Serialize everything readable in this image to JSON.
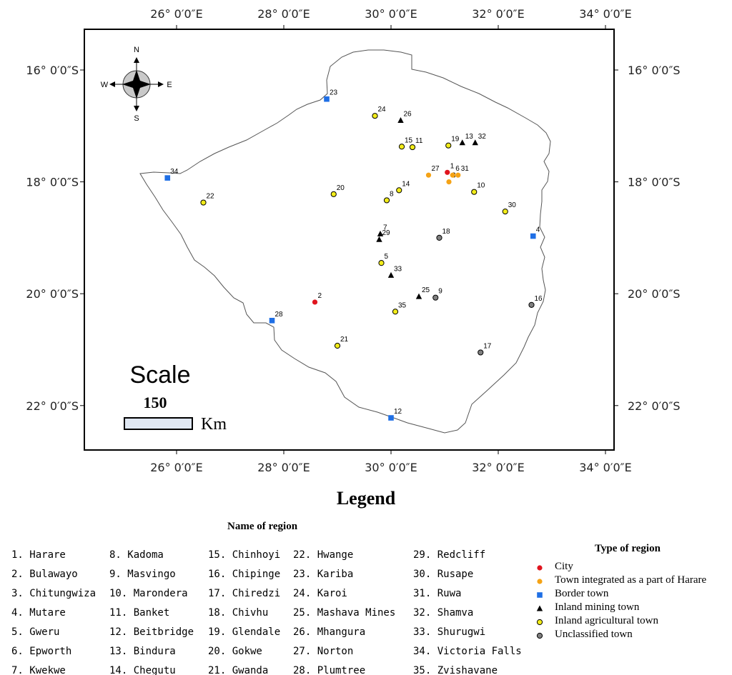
{
  "coordinates": {
    "top_labels": [
      "26° 0′0″E",
      "28° 0′0″E",
      "30° 0′0″E",
      "32° 0′0″E",
      "34° 0′0″E"
    ],
    "bottom_labels": [
      "26° 0′0″E",
      "28° 0′0″E",
      "30° 0′0″E",
      "32° 0′0″E",
      "34° 0′0″E"
    ],
    "left_labels": [
      "16° 0′0″S",
      "18° 0′0″S",
      "20° 0′0″S",
      "22° 0′0″S"
    ],
    "right_labels": [
      "16° 0′0″S",
      "18° 0′0″S",
      "20° 0′0″S",
      "22° 0′0″S"
    ]
  },
  "compass": {
    "north": "N",
    "south": "S",
    "east": "E",
    "west": "W"
  },
  "scale": {
    "title": "Scale",
    "value": "150",
    "unit": "Km"
  },
  "colors": {
    "city": "#e0141e",
    "town_harare": "#f5a316",
    "border": "#1f6fe5",
    "mining": "#000000",
    "agricultural": "#f2ec1a",
    "unclassified": "#7f7f7f"
  },
  "towns": [
    {
      "id": "1",
      "lon": 31.05,
      "lat": -17.83,
      "type": "city"
    },
    {
      "id": "2",
      "lon": 28.58,
      "lat": -20.15,
      "type": "city"
    },
    {
      "id": "3",
      "lon": 31.08,
      "lat": -18.0,
      "type": "town_harare"
    },
    {
      "id": "4",
      "lon": 32.65,
      "lat": -18.97,
      "type": "border"
    },
    {
      "id": "5",
      "lon": 29.82,
      "lat": -19.45,
      "type": "agricultural"
    },
    {
      "id": "6",
      "lon": 31.15,
      "lat": -17.88,
      "type": "town_harare"
    },
    {
      "id": "7",
      "lon": 29.8,
      "lat": -18.93,
      "type": "mining"
    },
    {
      "id": "8",
      "lon": 29.92,
      "lat": -18.33,
      "type": "agricultural"
    },
    {
      "id": "9",
      "lon": 30.83,
      "lat": -20.07,
      "type": "unclassified"
    },
    {
      "id": "10",
      "lon": 31.55,
      "lat": -18.18,
      "type": "agricultural"
    },
    {
      "id": "11",
      "lon": 30.4,
      "lat": -17.38,
      "type": "agricultural"
    },
    {
      "id": "12",
      "lon": 30.0,
      "lat": -22.22,
      "type": "border"
    },
    {
      "id": "13",
      "lon": 31.33,
      "lat": -17.3,
      "type": "mining"
    },
    {
      "id": "14",
      "lon": 30.15,
      "lat": -18.15,
      "type": "agricultural"
    },
    {
      "id": "15",
      "lon": 30.2,
      "lat": -17.37,
      "type": "agricultural"
    },
    {
      "id": "16",
      "lon": 32.62,
      "lat": -20.2,
      "type": "unclassified"
    },
    {
      "id": "17",
      "lon": 31.67,
      "lat": -21.05,
      "type": "unclassified"
    },
    {
      "id": "18",
      "lon": 30.9,
      "lat": -19.0,
      "type": "unclassified"
    },
    {
      "id": "19",
      "lon": 31.07,
      "lat": -17.35,
      "type": "agricultural"
    },
    {
      "id": "20",
      "lon": 28.93,
      "lat": -18.22,
      "type": "agricultural"
    },
    {
      "id": "21",
      "lon": 29.0,
      "lat": -20.93,
      "type": "agricultural"
    },
    {
      "id": "22",
      "lon": 26.5,
      "lat": -18.37,
      "type": "agricultural"
    },
    {
      "id": "23",
      "lon": 28.8,
      "lat": -16.52,
      "type": "border"
    },
    {
      "id": "24",
      "lon": 29.7,
      "lat": -16.82,
      "type": "agricultural"
    },
    {
      "id": "25",
      "lon": 30.52,
      "lat": -20.05,
      "type": "mining"
    },
    {
      "id": "26",
      "lon": 30.18,
      "lat": -16.9,
      "type": "mining"
    },
    {
      "id": "27",
      "lon": 30.7,
      "lat": -17.88,
      "type": "town_harare"
    },
    {
      "id": "28",
      "lon": 27.78,
      "lat": -20.48,
      "type": "border"
    },
    {
      "id": "29",
      "lon": 29.78,
      "lat": -19.03,
      "type": "mining"
    },
    {
      "id": "30",
      "lon": 32.13,
      "lat": -18.53,
      "type": "agricultural"
    },
    {
      "id": "31",
      "lon": 31.25,
      "lat": -17.88,
      "type": "town_harare"
    },
    {
      "id": "32",
      "lon": 31.57,
      "lat": -17.3,
      "type": "mining"
    },
    {
      "id": "33",
      "lon": 30.0,
      "lat": -19.67,
      "type": "mining"
    },
    {
      "id": "34",
      "lon": 25.83,
      "lat": -17.93,
      "type": "border"
    },
    {
      "id": "35",
      "lon": 30.08,
      "lat": -20.32,
      "type": "agricultural"
    }
  ],
  "legend": {
    "title": "Legend",
    "regions_title": "Name of region",
    "region_columns": [
      [
        "1. Harare",
        "2. Bulawayo",
        "3. Chitungwiza",
        "4. Mutare",
        "5. Gweru",
        "6. Epworth",
        "7. Kwekwe"
      ],
      [
        "8. Kadoma",
        "9. Masvingo",
        "10. Marondera",
        "11. Banket",
        "12. Beitbridge",
        "13. Bindura",
        "14. Chegutu"
      ],
      [
        "15. Chinhoyi",
        "16. Chipinge",
        "17. Chiredzi",
        "18. Chivhu",
        "19. Glendale",
        "20. Gokwe",
        "21. Gwanda"
      ],
      [
        "22. Hwange",
        "23. Kariba",
        "24. Karoi",
        "25. Mashava Mines",
        "26. Mhangura",
        "27. Norton",
        "28. Plumtree"
      ],
      [
        "29. Redcliff",
        "30. Rusape",
        "31. Ruwa",
        "32. Shamva",
        "33. Shurugwi",
        "34. Victoria Falls",
        "35. Zvishavane"
      ]
    ],
    "type_title": "Type of region",
    "types": [
      {
        "key": "city",
        "label": "City",
        "symbol": "circle"
      },
      {
        "key": "town_harare",
        "label": "Town integrated as a part of Harare",
        "symbol": "circle"
      },
      {
        "key": "border",
        "label": "Border town",
        "symbol": "square"
      },
      {
        "key": "mining",
        "label": "Inland mining town",
        "symbol": "triangle"
      },
      {
        "key": "agricultural",
        "label": "Inland agricultural town",
        "symbol": "circle"
      },
      {
        "key": "unclassified",
        "label": "Unclassified town",
        "symbol": "circle"
      }
    ]
  }
}
